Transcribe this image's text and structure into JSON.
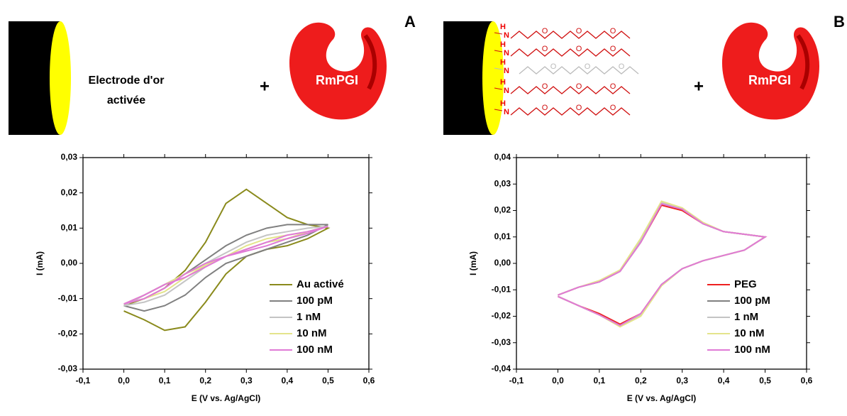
{
  "panel_a": {
    "label": "A",
    "electrode_label": [
      "Electrode d'or",
      "activée"
    ],
    "plus": "+",
    "enzyme": "RmPGI"
  },
  "panel_b": {
    "label": "B",
    "plus": "+",
    "enzyme": "RmPGI",
    "peg_atoms": {
      "h": "H",
      "n": "N",
      "o": "O"
    }
  },
  "chart_data": [
    {
      "type": "line",
      "x_label": "E (V vs. Ag/AgCl)",
      "y_label": "I (mA)",
      "x": [
        0,
        0.05,
        0.1,
        0.15,
        0.2,
        0.25,
        0.3,
        0.35,
        0.4,
        0.45,
        0.5,
        0.45,
        0.4,
        0.35,
        0.3,
        0.25,
        0.2,
        0.15,
        0.1,
        0.05,
        0
      ],
      "xlim": [
        -0.1,
        0.6
      ],
      "xticks": [
        {
          "value": -0.1,
          "label": "-0,1"
        },
        {
          "value": 0,
          "label": "0,0"
        },
        {
          "value": 0.1,
          "label": "0,1"
        },
        {
          "value": 0.2,
          "label": "0,2"
        },
        {
          "value": 0.3,
          "label": "0,3"
        },
        {
          "value": 0.4,
          "label": "0,4"
        },
        {
          "value": 0.5,
          "label": "0,5"
        },
        {
          "value": 0.6,
          "label": "0,6"
        }
      ],
      "ylim": [
        -0.03,
        0.03
      ],
      "yticks": [
        {
          "value": -0.03,
          "label": "-0,03"
        },
        {
          "value": -0.02,
          "label": "-0,02"
        },
        {
          "value": -0.01,
          "label": "-0,01"
        },
        {
          "value": 0,
          "label": "0,00"
        },
        {
          "value": 0.01,
          "label": "0,01"
        },
        {
          "value": 0.02,
          "label": "0,02"
        },
        {
          "value": 0.03,
          "label": "0,03"
        }
      ],
      "legend": "lower right",
      "series": [
        {
          "name": "Au activé",
          "color": "#8a8a1c",
          "values": [
            -0.012,
            -0.01,
            -0.007,
            -0.002,
            0.006,
            0.017,
            0.021,
            0.017,
            0.013,
            0.011,
            0.01,
            0.007,
            0.005,
            0.004,
            0.002,
            -0.003,
            -0.011,
            -0.018,
            -0.019,
            -0.016,
            -0.0135
          ]
        },
        {
          "name": "100 pM",
          "color": "#808080",
          "values": [
            -0.012,
            -0.009,
            -0.006,
            -0.003,
            0.001,
            0.005,
            0.008,
            0.01,
            0.011,
            0.011,
            0.011,
            0.008,
            0.006,
            0.004,
            0.002,
            0,
            -0.004,
            -0.009,
            -0.012,
            -0.0135,
            -0.012
          ]
        },
        {
          "name": "1 nM",
          "color": "#c4c4c4",
          "values": [
            -0.012,
            -0.009,
            -0.006,
            -0.003,
            0,
            0.003,
            0.006,
            0.008,
            0.009,
            0.01,
            0.0105,
            0.009,
            0.007,
            0.006,
            0.004,
            0.002,
            -0.001,
            -0.005,
            -0.009,
            -0.011,
            -0.012
          ]
        },
        {
          "name": "10 nM",
          "color": "#e4e48c",
          "values": [
            -0.0115,
            -0.009,
            -0.006,
            -0.003,
            -0.0005,
            0.002,
            0.005,
            0.007,
            0.008,
            0.009,
            0.0105,
            0.009,
            0.007,
            0.006,
            0.004,
            0.002,
            -0.0005,
            -0.004,
            -0.008,
            -0.01,
            -0.0115
          ]
        },
        {
          "name": "100 nM",
          "color": "#e07ad6",
          "values": [
            -0.0115,
            -0.009,
            -0.006,
            -0.004,
            -0.001,
            0.002,
            0.004,
            0.006,
            0.008,
            0.009,
            0.0105,
            0.0085,
            0.007,
            0.005,
            0.0035,
            0.002,
            0,
            -0.003,
            -0.007,
            -0.01,
            -0.0115
          ]
        }
      ]
    },
    {
      "type": "line",
      "x_label": "E (V vs. Ag/AgCl)",
      "y_label": "I (mA)",
      "x": [
        0,
        0.05,
        0.1,
        0.15,
        0.2,
        0.25,
        0.3,
        0.35,
        0.4,
        0.45,
        0.5,
        0.45,
        0.4,
        0.35,
        0.3,
        0.25,
        0.2,
        0.15,
        0.1,
        0.05,
        0
      ],
      "xlim": [
        -0.1,
        0.6
      ],
      "xticks": [
        {
          "value": -0.1,
          "label": "-0,1"
        },
        {
          "value": 0,
          "label": "0,0"
        },
        {
          "value": 0.1,
          "label": "0,1"
        },
        {
          "value": 0.2,
          "label": "0,2"
        },
        {
          "value": 0.3,
          "label": "0,3"
        },
        {
          "value": 0.4,
          "label": "0,4"
        },
        {
          "value": 0.5,
          "label": "0,5"
        },
        {
          "value": 0.6,
          "label": "0,6"
        }
      ],
      "ylim": [
        -0.04,
        0.04
      ],
      "yticks": [
        {
          "value": -0.04,
          "label": "-0,04"
        },
        {
          "value": -0.03,
          "label": "-0,03"
        },
        {
          "value": -0.02,
          "label": "-0,02"
        },
        {
          "value": -0.01,
          "label": "-0,01"
        },
        {
          "value": 0,
          "label": "0,00"
        },
        {
          "value": 0.01,
          "label": "0,01"
        },
        {
          "value": 0.02,
          "label": "0,02"
        },
        {
          "value": 0.03,
          "label": "0,03"
        },
        {
          "value": 0.04,
          "label": "0,04"
        }
      ],
      "legend": "lower right",
      "series": [
        {
          "name": "PEG",
          "color": "#ee2020",
          "values": [
            -0.012,
            -0.009,
            -0.007,
            -0.003,
            0.008,
            0.022,
            0.02,
            0.015,
            0.012,
            0.011,
            0.01,
            0.005,
            0.003,
            0.001,
            -0.002,
            -0.008,
            -0.019,
            -0.023,
            -0.019,
            -0.016,
            -0.0125
          ]
        },
        {
          "name": "100 pM",
          "color": "#808080",
          "values": [
            -0.012,
            -0.009,
            -0.007,
            -0.003,
            0.008,
            0.0225,
            0.0205,
            0.015,
            0.012,
            0.011,
            0.01,
            0.005,
            0.003,
            0.001,
            -0.002,
            -0.008,
            -0.0195,
            -0.0235,
            -0.0195,
            -0.016,
            -0.0125
          ]
        },
        {
          "name": "1 nM",
          "color": "#c4c4c4",
          "values": [
            -0.012,
            -0.009,
            -0.007,
            -0.003,
            0.009,
            0.023,
            0.0205,
            0.015,
            0.012,
            0.011,
            0.01,
            0.005,
            0.003,
            0.001,
            -0.002,
            -0.008,
            -0.0195,
            -0.0235,
            -0.0195,
            -0.016,
            -0.0125
          ]
        },
        {
          "name": "10 nM",
          "color": "#e4e48c",
          "values": [
            -0.012,
            -0.009,
            -0.0065,
            -0.0025,
            0.0095,
            0.0235,
            0.021,
            0.0155,
            0.012,
            0.011,
            0.01,
            0.005,
            0.003,
            0.001,
            -0.002,
            -0.0085,
            -0.02,
            -0.024,
            -0.0195,
            -0.016,
            -0.0125
          ]
        },
        {
          "name": "100 nM",
          "color": "#e07ad6",
          "values": [
            -0.012,
            -0.009,
            -0.007,
            -0.003,
            0.008,
            0.0225,
            0.0205,
            0.015,
            0.012,
            0.011,
            0.01,
            0.005,
            0.003,
            0.001,
            -0.002,
            -0.008,
            -0.019,
            -0.0235,
            -0.0195,
            -0.016,
            -0.0125
          ]
        }
      ]
    }
  ]
}
